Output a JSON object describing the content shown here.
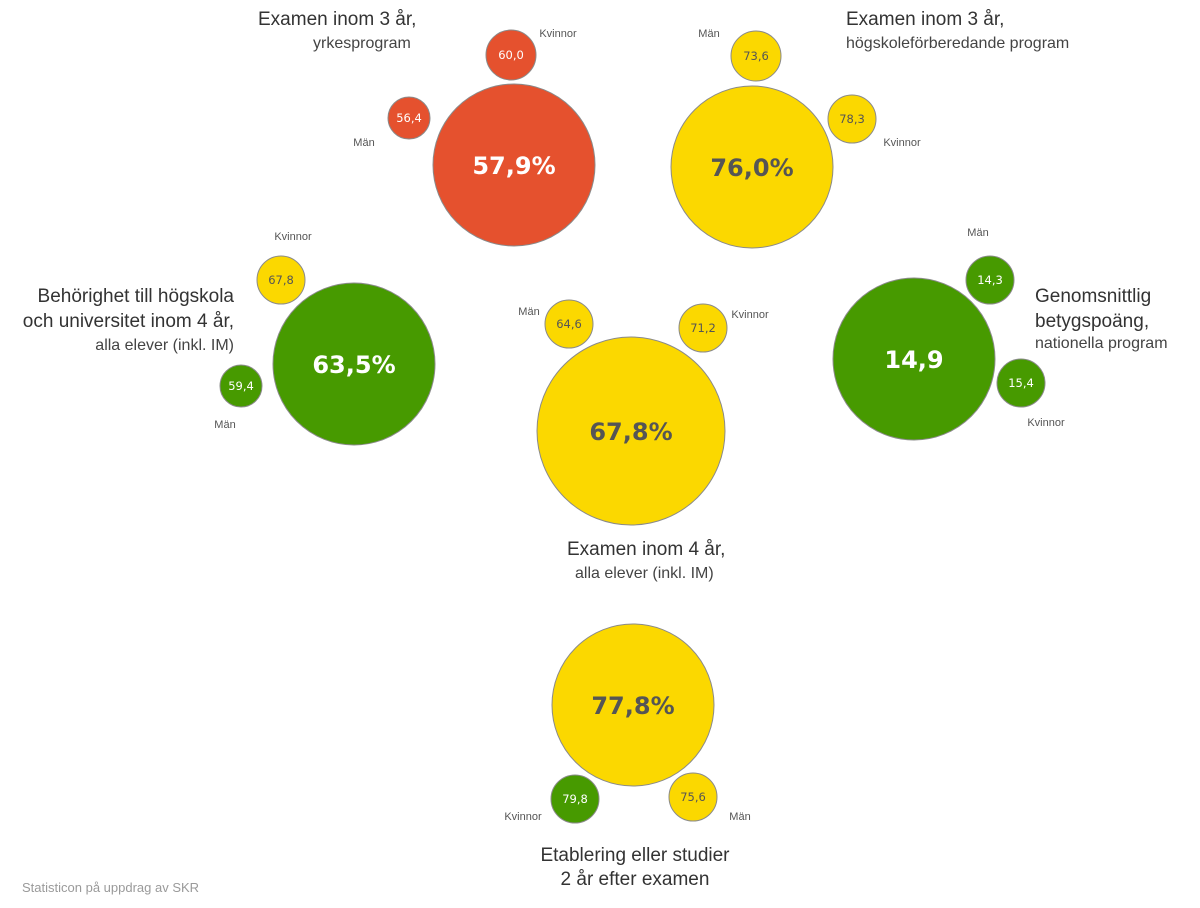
{
  "chart_data": {
    "type": "bubble",
    "colors": {
      "red": "#e5512e",
      "yellow": "#fbd800",
      "green": "#479a00"
    },
    "groups": [
      {
        "id": "yrke",
        "title": "Examen inom 3 år,",
        "subtitle": "yrkesprogram",
        "value_label": "57,9%",
        "value": 57.9,
        "color": "red",
        "subs": [
          {
            "gender": "Kvinnor",
            "value": 60.0,
            "label": "60,0",
            "color": "red"
          },
          {
            "gender": "Män",
            "value": 56.4,
            "label": "56,4",
            "color": "red"
          }
        ]
      },
      {
        "id": "hogskolefor",
        "title": "Examen inom 3 år,",
        "subtitle": "högskoleförberedande  program",
        "value_label": "76,0%",
        "value": 76.0,
        "color": "yellow",
        "subs": [
          {
            "gender": "Män",
            "value": 73.6,
            "label": "73,6",
            "color": "yellow"
          },
          {
            "gender": "Kvinnor",
            "value": 78.3,
            "label": "78,3",
            "color": "yellow"
          }
        ]
      },
      {
        "id": "behorighet",
        "title_lines": [
          "Behörighet till högskola",
          "och universitet inom 4 år,"
        ],
        "subtitle": "alla elever (inkl. IM)",
        "value_label": "63,5%",
        "value": 63.5,
        "color": "green",
        "subs": [
          {
            "gender": "Kvinnor",
            "value": 67.8,
            "label": "67,8",
            "color": "yellow"
          },
          {
            "gender": "Män",
            "value": 59.4,
            "label": "59,4",
            "color": "green"
          }
        ]
      },
      {
        "id": "examen4",
        "title": "Examen inom 4 år,",
        "subtitle": "alla elever (inkl. IM)",
        "value_label": "67,8%",
        "value": 67.8,
        "color": "yellow",
        "subs": [
          {
            "gender": "Män",
            "value": 64.6,
            "label": "64,6",
            "color": "yellow"
          },
          {
            "gender": "Kvinnor",
            "value": 71.2,
            "label": "71,2",
            "color": "yellow"
          }
        ]
      },
      {
        "id": "betyg",
        "title_lines": [
          "Genomsnittlig",
          "betygspoäng,"
        ],
        "subtitle": "nationella program",
        "value_label": "14,9",
        "value": 14.9,
        "color": "green",
        "subs": [
          {
            "gender": "Män",
            "value": 14.3,
            "label": "14,3",
            "color": "green"
          },
          {
            "gender": "Kvinnor",
            "value": 15.4,
            "label": "15,4",
            "color": "green"
          }
        ]
      },
      {
        "id": "etablering",
        "title": "Etablering eller studier",
        "subtitle": "2 år efter examen",
        "value_label": "77,8%",
        "value": 77.8,
        "color": "yellow",
        "subs": [
          {
            "gender": "Kvinnor",
            "value": 79.8,
            "label": "79,8",
            "color": "green"
          },
          {
            "gender": "Män",
            "value": 75.6,
            "label": "75,6",
            "color": "yellow"
          }
        ]
      }
    ]
  },
  "footer": "Statisticon på uppdrag av SKR"
}
